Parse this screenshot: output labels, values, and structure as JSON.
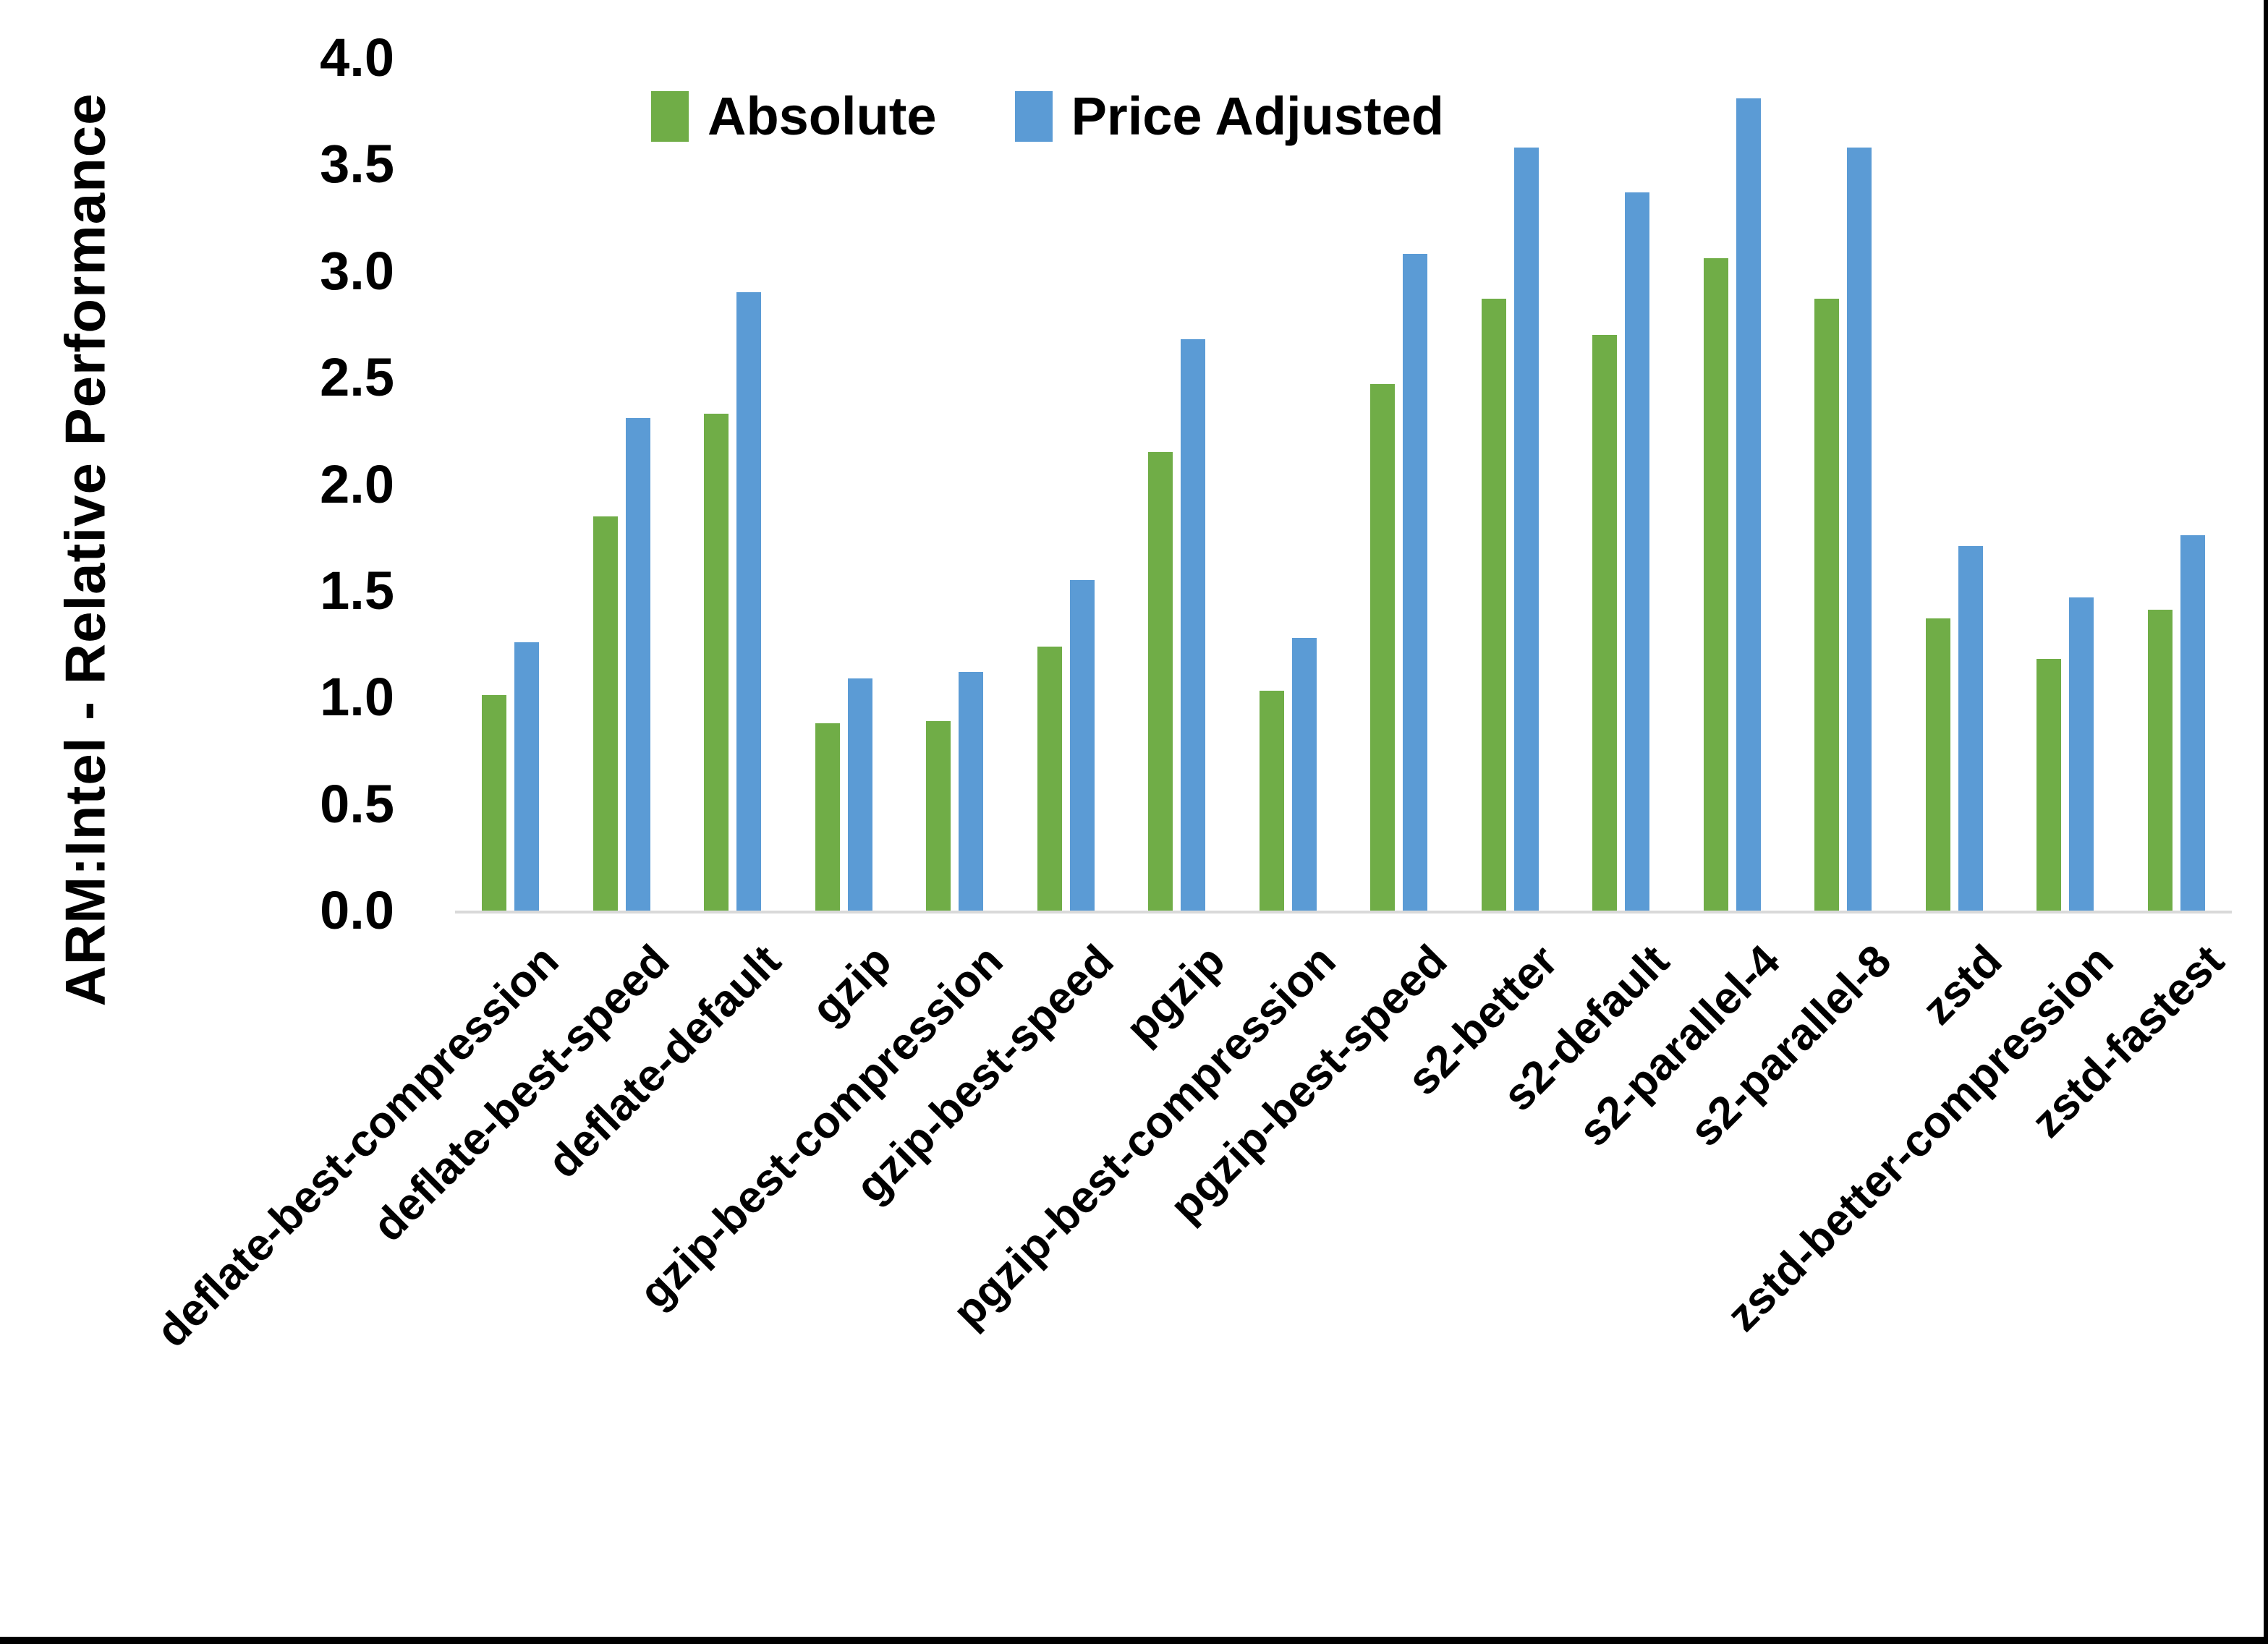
{
  "figure": {
    "y_axis_title": "ARM:Intel - Relative Performance",
    "y_ticks": [
      "4.0",
      "3.5",
      "3.0",
      "2.5",
      "2.0",
      "1.5",
      "1.0",
      "0.5",
      "0.0"
    ]
  },
  "legend": {
    "items": [
      {
        "label": "Absolute",
        "color": "#70AD47"
      },
      {
        "label": "Price Adjusted",
        "color": "#5B9BD5"
      }
    ]
  },
  "colors": {
    "absolute_green": "#70AD47",
    "price_adjusted_blue": "#5B9BD5",
    "axis_line": "#D9D9D9",
    "text": "#000000",
    "frame": "#000000"
  },
  "chart_data": {
    "type": "bar",
    "title": "",
    "xlabel": "",
    "ylabel": "ARM:Intel - Relative Performance",
    "ylim": [
      0,
      4.0
    ],
    "ytick_step": 0.5,
    "grid": false,
    "legend_position": "top-center",
    "categories": [
      "deflate-best-compression",
      "deflate-best-speed",
      "deflate-default",
      "gzip",
      "gzip-best-compression",
      "gzip-best-speed",
      "pgzip",
      "pgzip-best-compression",
      "pgzip-best-speed",
      "s2-better",
      "s2-default",
      "s2-parallel-4",
      "s2-parallel-8",
      "zstd",
      "zstd-better-compression",
      "zstd-fastest"
    ],
    "series": [
      {
        "name": "Absolute",
        "color": "#70AD47",
        "values": [
          1.01,
          1.85,
          2.33,
          0.88,
          0.89,
          1.24,
          2.15,
          1.03,
          2.47,
          2.87,
          2.7,
          3.06,
          2.87,
          1.37,
          1.18,
          1.41
        ]
      },
      {
        "name": "Price Adjusted",
        "color": "#5B9BD5",
        "values": [
          1.26,
          2.31,
          2.9,
          1.09,
          1.12,
          1.55,
          2.68,
          1.28,
          3.08,
          3.58,
          3.37,
          3.81,
          3.58,
          1.71,
          1.47,
          1.76
        ]
      }
    ]
  }
}
